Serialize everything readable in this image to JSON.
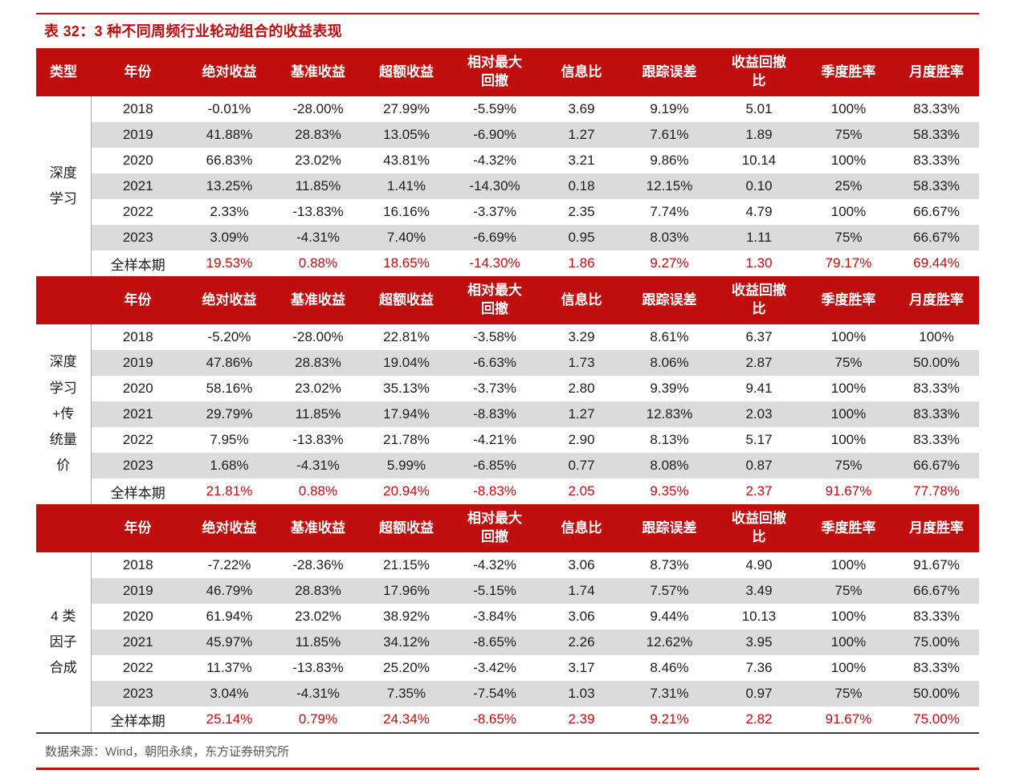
{
  "title": "表 32：3 种不同周频行业轮动组合的收益表现",
  "source_note": "数据来源：Wind，朝阳永续，东方证券研究所",
  "colors": {
    "accent_red": "#C00D0D",
    "stripe_gray": "#DBDBDB",
    "footer_gray": "#595959",
    "table_bottom_rule": "#404040"
  },
  "table": {
    "columns": [
      "类型",
      "年份",
      "绝对收益",
      "基准收益",
      "超额收益",
      "相对最大\n回撤",
      "信息比",
      "跟踪误差",
      "收益回撤\n比",
      "季度胜率",
      "月度胜率"
    ],
    "sections": [
      {
        "type_label": "深度\n学习",
        "rows": [
          [
            "2018",
            "-0.01%",
            "-28.00%",
            "27.99%",
            "-5.59%",
            "3.69",
            "9.19%",
            "5.01",
            "100%",
            "83.33%"
          ],
          [
            "2019",
            "41.88%",
            "28.83%",
            "13.05%",
            "-6.90%",
            "1.27",
            "7.61%",
            "1.89",
            "75%",
            "58.33%"
          ],
          [
            "2020",
            "66.83%",
            "23.02%",
            "43.81%",
            "-4.32%",
            "3.21",
            "9.86%",
            "10.14",
            "100%",
            "83.33%"
          ],
          [
            "2021",
            "13.25%",
            "11.85%",
            "1.41%",
            "-14.30%",
            "0.18",
            "12.15%",
            "0.10",
            "25%",
            "58.33%"
          ],
          [
            "2022",
            "2.33%",
            "-13.83%",
            "16.16%",
            "-3.37%",
            "2.35",
            "7.74%",
            "4.79",
            "100%",
            "66.67%"
          ],
          [
            "2023",
            "3.09%",
            "-4.31%",
            "7.40%",
            "-6.69%",
            "0.95",
            "8.03%",
            "1.11",
            "75%",
            "66.67%"
          ]
        ],
        "summary": [
          "全样本期",
          "19.53%",
          "0.88%",
          "18.65%",
          "-14.30%",
          "1.86",
          "9.27%",
          "1.30",
          "79.17%",
          "69.44%"
        ]
      },
      {
        "type_label": "深度\n学习\n+传\n统量\n价",
        "rows": [
          [
            "2018",
            "-5.20%",
            "-28.00%",
            "22.81%",
            "-3.58%",
            "3.29",
            "8.61%",
            "6.37",
            "100%",
            "100%"
          ],
          [
            "2019",
            "47.86%",
            "28.83%",
            "19.04%",
            "-6.63%",
            "1.73",
            "8.06%",
            "2.87",
            "75%",
            "50.00%"
          ],
          [
            "2020",
            "58.16%",
            "23.02%",
            "35.13%",
            "-3.73%",
            "2.80",
            "9.39%",
            "9.41",
            "100%",
            "83.33%"
          ],
          [
            "2021",
            "29.79%",
            "11.85%",
            "17.94%",
            "-8.83%",
            "1.27",
            "12.83%",
            "2.03",
            "100%",
            "83.33%"
          ],
          [
            "2022",
            "7.95%",
            "-13.83%",
            "21.78%",
            "-4.21%",
            "2.90",
            "8.13%",
            "5.17",
            "100%",
            "83.33%"
          ],
          [
            "2023",
            "1.68%",
            "-4.31%",
            "5.99%",
            "-6.85%",
            "0.77",
            "8.08%",
            "0.87",
            "75%",
            "66.67%"
          ]
        ],
        "summary": [
          "全样本期",
          "21.81%",
          "0.88%",
          "20.94%",
          "-8.83%",
          "2.05",
          "9.35%",
          "2.37",
          "91.67%",
          "77.78%"
        ]
      },
      {
        "type_label": "4 类\n因子\n合成",
        "rows": [
          [
            "2018",
            "-7.22%",
            "-28.36%",
            "21.15%",
            "-4.32%",
            "3.06",
            "8.73%",
            "4.90",
            "100%",
            "91.67%"
          ],
          [
            "2019",
            "46.79%",
            "28.83%",
            "17.96%",
            "-5.15%",
            "1.74",
            "7.57%",
            "3.49",
            "75%",
            "66.67%"
          ],
          [
            "2020",
            "61.94%",
            "23.02%",
            "38.92%",
            "-3.84%",
            "3.06",
            "9.44%",
            "10.13",
            "100%",
            "83.33%"
          ],
          [
            "2021",
            "45.97%",
            "11.85%",
            "34.12%",
            "-8.65%",
            "2.26",
            "12.62%",
            "3.95",
            "100%",
            "75.00%"
          ],
          [
            "2022",
            "11.37%",
            "-13.83%",
            "25.20%",
            "-3.42%",
            "3.17",
            "8.46%",
            "7.36",
            "100%",
            "83.33%"
          ],
          [
            "2023",
            "3.04%",
            "-4.31%",
            "7.35%",
            "-7.54%",
            "1.03",
            "7.31%",
            "0.97",
            "75%",
            "50.00%"
          ]
        ],
        "summary": [
          "全样本期",
          "25.14%",
          "0.79%",
          "24.34%",
          "-8.65%",
          "2.39",
          "9.21%",
          "2.82",
          "91.67%",
          "75.00%"
        ]
      }
    ]
  }
}
